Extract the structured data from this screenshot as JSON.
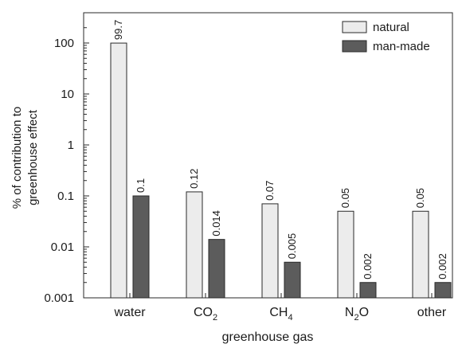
{
  "chart_data": {
    "type": "bar",
    "y_scale": "log",
    "ylim": [
      0.001,
      200
    ],
    "yticks": [
      {
        "value": 100,
        "label": "100"
      },
      {
        "value": 10,
        "label": "10"
      },
      {
        "value": 1,
        "label": "1"
      },
      {
        "value": 0.1,
        "label": "0.1"
      },
      {
        "value": 0.01,
        "label": "0.01"
      },
      {
        "value": 0.001,
        "label": "0.001"
      }
    ],
    "categories": [
      {
        "base": "water",
        "sub": ""
      },
      {
        "base": "CO",
        "sub": "2"
      },
      {
        "base": "CH",
        "sub": "4"
      },
      {
        "base": "N",
        "sub": "2",
        "tail": "O"
      },
      {
        "base": "other",
        "sub": ""
      }
    ],
    "series": [
      {
        "name": "natural",
        "color": "#ececec",
        "values": [
          99.7,
          0.12,
          0.07,
          0.05,
          0.05
        ],
        "labels": [
          "99.7",
          "0.12",
          "0.07",
          "0.05",
          "0.05"
        ]
      },
      {
        "name": "man-made",
        "color": "#5c5c5c",
        "values": [
          0.1,
          0.014,
          0.005,
          0.002,
          0.002
        ],
        "labels": [
          "0.1",
          "0.014",
          "0.005",
          "0.002",
          "0.002"
        ]
      }
    ],
    "xlabel": "greenhouse gas",
    "ylabel_lines": [
      "% of contribution to",
      "greenhouse effect"
    ],
    "legend_position": "top-right",
    "grid": false
  }
}
